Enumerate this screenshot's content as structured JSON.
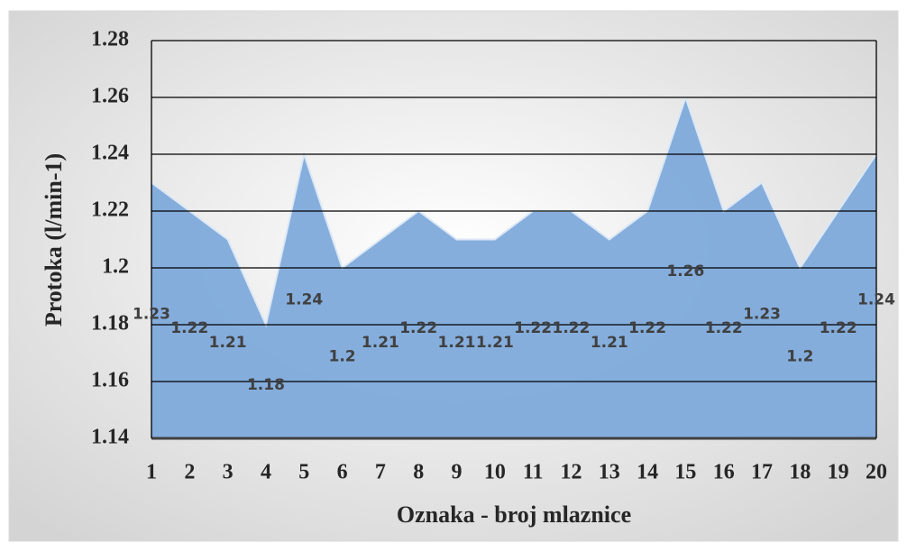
{
  "chart_data": {
    "type": "area",
    "x_label": "Oznaka - broj mlaznice",
    "y_label": "Protoka (l/min-1)",
    "categories": [
      "1",
      "2",
      "3",
      "4",
      "5",
      "6",
      "7",
      "8",
      "9",
      "10",
      "11",
      "12",
      "13",
      "14",
      "15",
      "16",
      "17",
      "18",
      "19",
      "20"
    ],
    "values": [
      1.23,
      1.22,
      1.21,
      1.18,
      1.24,
      1.2,
      1.21,
      1.22,
      1.21,
      1.21,
      1.22,
      1.22,
      1.21,
      1.22,
      1.26,
      1.22,
      1.23,
      1.2,
      1.22,
      1.24
    ],
    "color": "#7eaadb",
    "ylim": [
      1.14,
      1.28
    ],
    "yticks": [
      1.14,
      1.16,
      1.18,
      1.2,
      1.22,
      1.24,
      1.26,
      1.28
    ],
    "grid": true
  }
}
